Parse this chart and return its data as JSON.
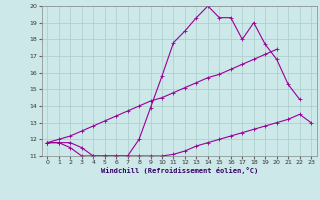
{
  "xlabel": "Windchill (Refroidissement éolien,°C)",
  "x": [
    0,
    1,
    2,
    3,
    4,
    5,
    6,
    7,
    8,
    9,
    10,
    11,
    12,
    13,
    14,
    15,
    16,
    17,
    18,
    19,
    20,
    21,
    22,
    23
  ],
  "line1": [
    11.8,
    11.8,
    11.8,
    11.5,
    11.0,
    11.0,
    11.0,
    11.0,
    12.0,
    13.9,
    15.8,
    17.8,
    18.5,
    19.3,
    20.0,
    19.3,
    19.3,
    18.0,
    19.0,
    17.7,
    16.8,
    15.3,
    14.4,
    null
  ],
  "line2": [
    11.8,
    11.8,
    11.5,
    11.0,
    11.0,
    11.0,
    11.0,
    11.0,
    11.0,
    11.0,
    11.0,
    11.1,
    11.3,
    11.6,
    11.8,
    12.0,
    12.2,
    12.4,
    12.6,
    12.8,
    13.0,
    13.2,
    13.5,
    13.0
  ],
  "line3": [
    11.8,
    12.0,
    12.2,
    12.5,
    12.8,
    13.1,
    13.4,
    13.7,
    14.0,
    14.3,
    14.5,
    14.8,
    15.1,
    15.4,
    15.7,
    15.9,
    16.2,
    16.5,
    16.8,
    17.1,
    17.4,
    null,
    null,
    null
  ],
  "background": "#cce8e8",
  "grid_color": "#aacccc",
  "line_color": "#990099",
  "ylim": [
    11,
    20
  ],
  "xlim": [
    -0.5,
    23.5
  ],
  "yticks": [
    11,
    12,
    13,
    14,
    15,
    16,
    17,
    18,
    19,
    20
  ],
  "xticks": [
    0,
    1,
    2,
    3,
    4,
    5,
    6,
    7,
    8,
    9,
    10,
    11,
    12,
    13,
    14,
    15,
    16,
    17,
    18,
    19,
    20,
    21,
    22,
    23
  ]
}
